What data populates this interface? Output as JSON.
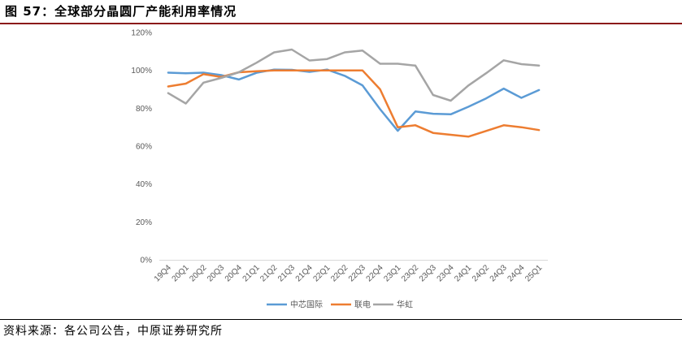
{
  "header": {
    "title": "图 57：全球部分晶圆厂产能利用率情况"
  },
  "footer": {
    "source": "资料来源：各公司公告，中原证券研究所"
  },
  "chart_data": {
    "type": "line",
    "title": "",
    "xlabel": "",
    "ylabel": "",
    "ylim": [
      0,
      120
    ],
    "y_ticks": [
      "0%",
      "20%",
      "40%",
      "60%",
      "80%",
      "100%",
      "120%"
    ],
    "grid": false,
    "legend_position": "bottom",
    "categories": [
      "19Q4",
      "20Q1",
      "20Q2",
      "20Q3",
      "20Q4",
      "21Q1",
      "21Q2",
      "21Q3",
      "21Q4",
      "22Q1",
      "22Q2",
      "22Q3",
      "22Q4",
      "23Q1",
      "23Q2",
      "23Q3",
      "23Q4",
      "24Q1",
      "24Q2",
      "24Q3",
      "24Q4",
      "25Q1"
    ],
    "series": [
      {
        "name": "中芯国际",
        "color": "#5b9bd5",
        "values": [
          98.8,
          98.5,
          98.8,
          97.5,
          95.2,
          98.7,
          100.4,
          100.3,
          99.2,
          100.4,
          97.1,
          92.1,
          79.5,
          68.1,
          78.3,
          77.1,
          76.8,
          80.8,
          85.2,
          90.4,
          85.5,
          89.6
        ]
      },
      {
        "name": "联电",
        "color": "#ed7d31",
        "values": [
          91.5,
          93.0,
          98.0,
          96.5,
          99.0,
          99.5,
          100.0,
          100.0,
          100.0,
          100.0,
          100.0,
          100.0,
          90.0,
          70.0,
          71.0,
          67.0,
          66.0,
          65.0,
          68.0,
          71.0,
          70.0,
          68.5
        ]
      },
      {
        "name": "华虹",
        "color": "#a5a5a5",
        "values": [
          88.0,
          82.5,
          93.5,
          96.0,
          99.0,
          104.0,
          109.5,
          111.0,
          105.2,
          106.0,
          109.5,
          110.5,
          103.5,
          103.5,
          102.5,
          87.0,
          84.0,
          92.0,
          98.5,
          105.3,
          103.3,
          102.5
        ]
      }
    ]
  }
}
